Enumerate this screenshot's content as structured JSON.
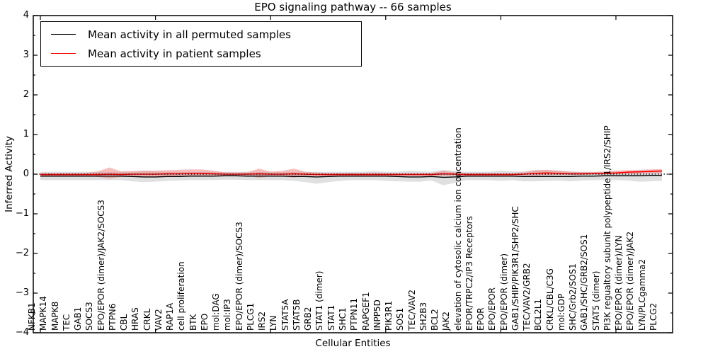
{
  "title": "EPO signaling pathway -- 66 samples",
  "axes": {
    "ylabel": "Inferred Activity",
    "xlabel": "Cellular Entities",
    "yticklabels": [
      "4",
      "3",
      "2",
      "1",
      "0",
      "−1",
      "−2",
      "−3",
      "−4"
    ],
    "ylim": [
      -4,
      4
    ]
  },
  "legend": {
    "position": "upper left",
    "items": [
      {
        "label": "Mean activity in all permuted samples",
        "color": "#000000"
      },
      {
        "label": "Mean activity in patient samples",
        "color": "#ff0000"
      }
    ]
  },
  "colors": {
    "permuted_line": "#000000",
    "permuted_band": "#bbbbbb",
    "patient_line": "#ff0000",
    "patient_band": "#ee6666",
    "frame": "#000000"
  },
  "chart_data": {
    "type": "line",
    "title": "EPO signaling pathway -- 66 samples",
    "xlabel": "Cellular Entities",
    "ylabel": "Inferred Activity",
    "ylim": [
      -4,
      4
    ],
    "grid": false,
    "legend_position": "upper left",
    "reference_line": {
      "y": 0,
      "style": "dotted",
      "color": "#000000"
    },
    "categories": [
      "NFKB1",
      "MAPK14",
      "MAPK8",
      "TEC",
      "GAB1",
      "SOCS3",
      "EPO/EPOR (dimer)/JAK2/SOCS3",
      "PTPN6",
      "CBL",
      "HRAS",
      "CRKL",
      "VAV2",
      "RAP1A",
      "cell proliferation",
      "BTK",
      "EPO",
      "mol:DAG",
      "mol:IP3",
      "EPO/EPOR (dimer)/SOCS3",
      "PLCG1",
      "IRS2",
      "LYN",
      "STAT5A",
      "STAT5B",
      "GRB2",
      "STAT1 (dimer)",
      "STAT1",
      "SHC1",
      "PTPN11",
      "RAPGEF1",
      "INPP5D",
      "PIK3R1",
      "SOS1",
      "TEC/VAV2",
      "SH2B3",
      "BCL2",
      "JAK2",
      "elevation of cytosolic calcium ion concentration",
      "EPOR/TRPC2/IP3 Receptors",
      "EPOR",
      "EPO/EPOR",
      "EPO/EPOR (dimer)",
      "GAB1/SHIP/PIK3R1/SHP2/SHC",
      "TEC/VAV2/GRB2",
      "BCL2L1",
      "CRKL/CBL/C3G",
      "mol:GDP",
      "SHC/Grb2/SOS1",
      "GAB1/SHC/GRB2/SOS1",
      "STAT5 (dimer)",
      "PI3K regualtory subunit polypeptide 1/IRS2/SHIP",
      "EPO/EPOR (dimer)/LYN",
      "EPO/EPOR (dimer)/JAK2",
      "LYN/PLCgamma2",
      "PLCG2"
    ],
    "series": [
      {
        "name": "Mean activity in all permuted samples",
        "color": "#000000",
        "values": [
          -0.05,
          -0.05,
          -0.05,
          -0.05,
          -0.05,
          -0.05,
          -0.05,
          -0.05,
          -0.06,
          -0.07,
          -0.07,
          -0.06,
          -0.06,
          -0.05,
          -0.05,
          -0.05,
          -0.04,
          -0.04,
          -0.05,
          -0.05,
          -0.05,
          -0.05,
          -0.06,
          -0.06,
          -0.07,
          -0.06,
          -0.05,
          -0.05,
          -0.05,
          -0.05,
          -0.05,
          -0.06,
          -0.07,
          -0.07,
          -0.06,
          -0.08,
          -0.07,
          -0.05,
          -0.05,
          -0.05,
          -0.05,
          -0.05,
          -0.06,
          -0.06,
          -0.06,
          -0.06,
          -0.06,
          -0.05,
          -0.05,
          -0.04,
          -0.04,
          -0.04,
          -0.04,
          -0.03,
          -0.03
        ],
        "band_upper": [
          0.06,
          0.06,
          0.06,
          0.06,
          0.06,
          0.06,
          0.06,
          0.06,
          0.06,
          0.08,
          0.07,
          0.06,
          0.06,
          0.06,
          0.06,
          0.06,
          0.06,
          0.06,
          0.06,
          0.06,
          0.06,
          0.06,
          0.06,
          0.06,
          0.06,
          0.06,
          0.06,
          0.06,
          0.06,
          0.08,
          0.06,
          0.06,
          0.09,
          0.07,
          0.06,
          0.11,
          0.08,
          0.06,
          0.06,
          0.06,
          0.09,
          0.07,
          0.07,
          0.1,
          0.1,
          0.09,
          0.07,
          0.06,
          0.06,
          0.06,
          0.07,
          0.07,
          0.08,
          0.09,
          0.1
        ],
        "band_lower": [
          -0.15,
          -0.15,
          -0.15,
          -0.15,
          -0.15,
          -0.15,
          -0.15,
          -0.15,
          -0.18,
          -0.2,
          -0.19,
          -0.17,
          -0.16,
          -0.15,
          -0.15,
          -0.15,
          -0.14,
          -0.14,
          -0.15,
          -0.15,
          -0.15,
          -0.15,
          -0.17,
          -0.2,
          -0.24,
          -0.2,
          -0.17,
          -0.15,
          -0.15,
          -0.15,
          -0.17,
          -0.18,
          -0.19,
          -0.19,
          -0.16,
          -0.28,
          -0.22,
          -0.15,
          -0.15,
          -0.15,
          -0.17,
          -0.15,
          -0.18,
          -0.18,
          -0.17,
          -0.16,
          -0.18,
          -0.16,
          -0.15,
          -0.15,
          -0.15,
          -0.16,
          -0.19,
          -0.18,
          -0.17
        ]
      },
      {
        "name": "Mean activity in patient samples",
        "color": "#ff0000",
        "values": [
          -0.01,
          -0.01,
          -0.01,
          -0.01,
          -0.01,
          -0.01,
          0.0,
          -0.01,
          0.0,
          0.0,
          0.0,
          0.01,
          0.01,
          0.02,
          0.02,
          0.01,
          0.0,
          0.0,
          0.0,
          0.01,
          0.0,
          0.0,
          0.01,
          0.0,
          -0.01,
          -0.01,
          -0.01,
          -0.01,
          -0.01,
          -0.01,
          -0.01,
          -0.01,
          -0.01,
          -0.01,
          -0.01,
          0.01,
          0.0,
          -0.01,
          -0.01,
          -0.01,
          -0.01,
          -0.01,
          0.0,
          0.02,
          0.03,
          0.02,
          0.01,
          0.01,
          0.02,
          0.02,
          0.03,
          0.05,
          0.06,
          0.07,
          0.08
        ],
        "band_upper": [
          0.03,
          0.03,
          0.03,
          0.03,
          0.03,
          0.07,
          0.17,
          0.07,
          0.08,
          0.09,
          0.09,
          0.1,
          0.11,
          0.12,
          0.12,
          0.09,
          0.05,
          0.04,
          0.05,
          0.14,
          0.06,
          0.08,
          0.14,
          0.06,
          0.04,
          0.03,
          0.03,
          0.03,
          0.03,
          0.04,
          0.03,
          0.03,
          0.03,
          0.03,
          0.03,
          0.08,
          0.05,
          0.03,
          0.03,
          0.03,
          0.03,
          0.03,
          0.05,
          0.1,
          0.11,
          0.09,
          0.06,
          0.05,
          0.05,
          0.07,
          0.09,
          0.1,
          0.11,
          0.12,
          0.13
        ],
        "band_lower": [
          -0.05,
          -0.05,
          -0.05,
          -0.05,
          -0.05,
          -0.07,
          -0.11,
          -0.07,
          -0.06,
          -0.07,
          -0.07,
          -0.06,
          -0.06,
          -0.06,
          -0.06,
          -0.05,
          -0.04,
          -0.04,
          -0.04,
          -0.09,
          -0.05,
          -0.05,
          -0.09,
          -0.05,
          -0.04,
          -0.04,
          -0.04,
          -0.04,
          -0.04,
          -0.04,
          -0.04,
          -0.04,
          -0.04,
          -0.04,
          -0.04,
          -0.05,
          -0.04,
          -0.04,
          -0.04,
          -0.04,
          -0.04,
          -0.04,
          -0.03,
          -0.04,
          -0.03,
          -0.02,
          -0.02,
          -0.02,
          -0.01,
          -0.01,
          0.0,
          0.01,
          0.01,
          0.02,
          0.02
        ]
      }
    ]
  }
}
